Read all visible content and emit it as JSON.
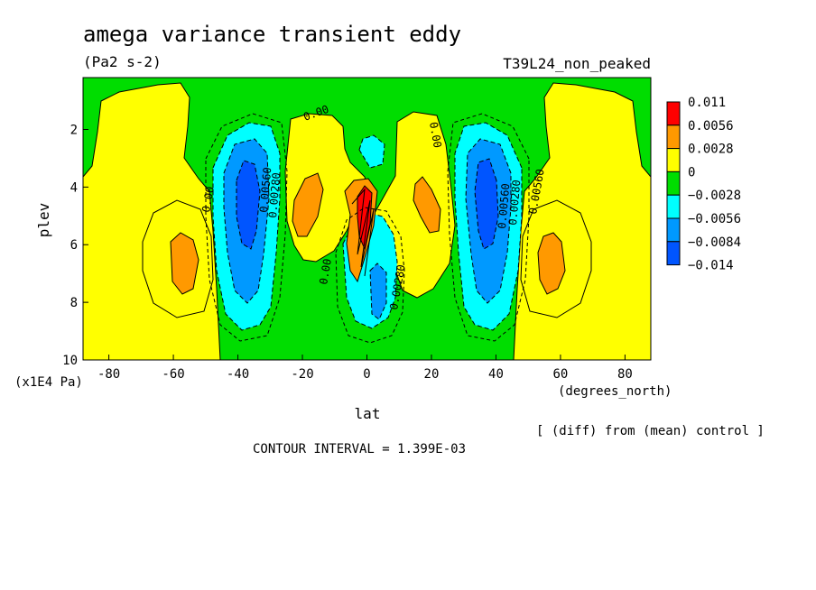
{
  "chart_data": {
    "type": "heatmap",
    "title": "amega variance transient eddy",
    "units": "(Pa2 s-2)",
    "run_label": "T39L24_non_peaked",
    "xlabel": "lat",
    "x_units": "(degrees_north)",
    "ylabel": "plev",
    "y_units": "(x1E4 Pa)",
    "xlim": [
      -88,
      88
    ],
    "ylim": [
      10,
      0.2
    ],
    "x_ticks": [
      "-80",
      "-60",
      "-40",
      "-20",
      "0",
      "20",
      "40",
      "60",
      "80"
    ],
    "y_ticks": [
      "2",
      "4",
      "6",
      "8",
      "10"
    ],
    "colorbar_labels": [
      "0.011",
      "0.0056",
      "0.0028",
      "0",
      "−0.0028",
      "−0.0056",
      "−0.0084",
      "−0.014"
    ],
    "colorbar_colors": [
      "#ff0000",
      "#ff9900",
      "#ffff00",
      "#00dd00",
      "#00ffff",
      "#0099ff",
      "#0055ff"
    ],
    "contour_labels": [
      "0.00",
      "0.00",
      "0.00",
      "0.00",
      "0.00280",
      "0.00560",
      "0.00280",
      "0.00560",
      "0.00280",
      "0.00560"
    ],
    "note": "[ (diff) from (mean) control ]",
    "contour_interval": "CONTOUR INTERVAL = 1.399E-03",
    "features": [
      {
        "name": "SH outer positive",
        "lat": -58,
        "plev": 6.3,
        "level": "0.0056"
      },
      {
        "name": "SH negative",
        "lat": -37,
        "plev": 4.8,
        "level": "-0.014"
      },
      {
        "name": "SH inner positive",
        "lat": -18,
        "plev": 4.2,
        "level": "0.0056"
      },
      {
        "name": "equatorial maximum",
        "lat": -1,
        "plev": 4.6,
        "level": "0.011"
      },
      {
        "name": "equatorial negative",
        "lat": 4,
        "plev": 7.6,
        "level": "-0.0084"
      },
      {
        "name": "NH inner positive",
        "lat": 18,
        "plev": 4.2,
        "level": "0.0056"
      },
      {
        "name": "NH negative",
        "lat": 36,
        "plev": 4.8,
        "level": "-0.014"
      },
      {
        "name": "NH outer positive",
        "lat": 58,
        "plev": 6.3,
        "level": "0.0056"
      }
    ]
  }
}
